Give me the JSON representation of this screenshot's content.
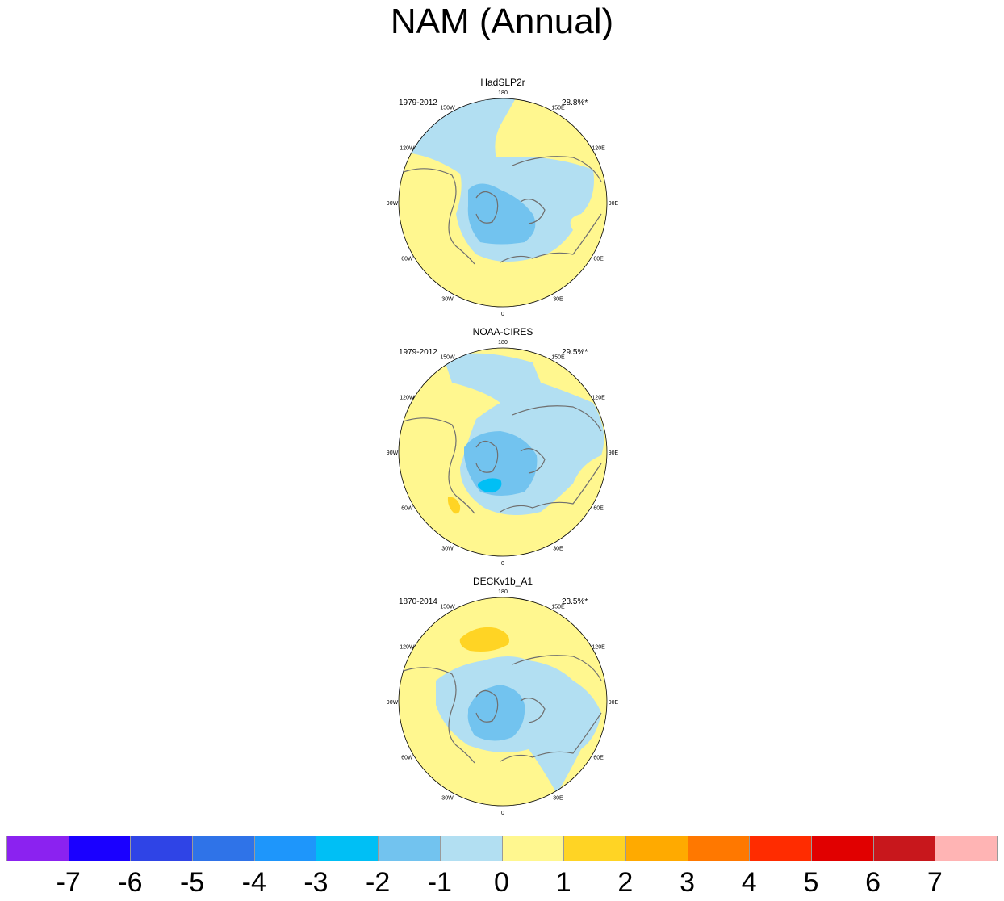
{
  "title": "NAM (Annual)",
  "colors": {
    "coast": "#6f6f6f",
    "neg1": "#b2dff2",
    "neg2": "#72c3ef",
    "neg3": "#00bff5",
    "pos1": "#fff78f",
    "pos2": "#ffd424"
  },
  "panels": [
    {
      "title": "HadSLP2r",
      "period": "1979-2012",
      "variance": "28.8%*"
    },
    {
      "title": "NOAA-CIRES",
      "period": "1979-2012",
      "variance": "29.5%*"
    },
    {
      "title": "DECKv1b_A1",
      "period": "1870-2014",
      "variance": "23.5%*"
    }
  ],
  "longitude_labels": [
    "180",
    "150W",
    "150E",
    "120W",
    "120E",
    "90W",
    "90E",
    "60W",
    "60E",
    "30W",
    "30E",
    "0"
  ],
  "colorbar": {
    "colors": [
      "#8b22f0",
      "#1a00ff",
      "#2f44e6",
      "#2f73e8",
      "#1e96fb",
      "#00bff5",
      "#72c3ef",
      "#b2dff2",
      "#fff78f",
      "#ffd424",
      "#ffaa00",
      "#ff7800",
      "#ff2c00",
      "#e10000",
      "#c8171c",
      "#ffb4b4"
    ],
    "labels": [
      "-7",
      "-6",
      "-5",
      "-4",
      "-3",
      "-2",
      "-1",
      "0",
      "1",
      "2",
      "3",
      "4",
      "5",
      "6",
      "7"
    ]
  }
}
